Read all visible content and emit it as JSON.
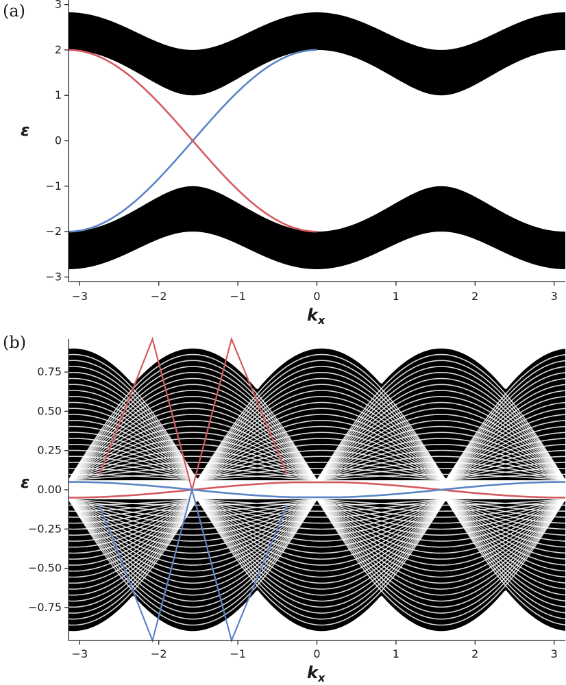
{
  "chart_data": [
    {
      "type": "line",
      "panel_label": "(a)",
      "xlabel": "k",
      "xlabel_sub": "x",
      "ylabel": "ε",
      "xlim": [
        -3.14159,
        3.14159
      ],
      "ylim": [
        -3.1,
        3.1
      ],
      "xticks": [
        -3,
        -2,
        -1,
        0,
        1,
        2,
        3
      ],
      "xtick_labels": [
        "−3",
        "−2",
        "−1",
        "0",
        "1",
        "2",
        "3"
      ],
      "yticks": [
        -3,
        -2,
        -1,
        0,
        1,
        2,
        3
      ],
      "ytick_labels": [
        "−3",
        "−2",
        "−1",
        "0",
        "1",
        "2",
        "3"
      ],
      "grid": false,
      "bands": [
        {
          "color": "#000000",
          "x_sampled": [
            -3.14159,
            -2.356,
            -1.5708,
            -0.785,
            0,
            0.785,
            1.5708,
            2.356,
            3.14159
          ],
          "lower": [
            2.0,
            1.3,
            0.71,
            1.3,
            2.0,
            1.3,
            0.71,
            1.3,
            2.0
          ],
          "upper": [
            2.83,
            2.4,
            2.0,
            2.4,
            2.83,
            2.4,
            2.0,
            2.4,
            2.83
          ]
        },
        {
          "color": "#000000",
          "x_sampled": [
            -3.14159,
            -2.356,
            -1.5708,
            -0.785,
            0,
            0.785,
            1.5708,
            2.356,
            3.14159
          ],
          "lower": [
            -2.83,
            -2.4,
            -2.0,
            -2.4,
            -2.83,
            -2.4,
            -2.0,
            -2.4,
            -2.83
          ],
          "upper": [
            -2.0,
            -1.3,
            -0.71,
            -1.3,
            -2.0,
            -1.3,
            -0.71,
            -1.3,
            -2.0
          ]
        }
      ],
      "series": [
        {
          "color": "#5b84c6",
          "x": [
            -3.14159,
            -2.5,
            -2.0,
            -1.5708,
            -1.0,
            -0.5,
            0
          ],
          "y": [
            2.0,
            1.6,
            0.83,
            0.0,
            -1.08,
            -1.75,
            -2.0
          ]
        },
        {
          "color": "#d45a5f",
          "x": [
            -3.14159,
            -2.5,
            -2.0,
            -1.5708,
            -1.0,
            -0.5,
            0
          ],
          "y": [
            -2.0,
            -1.6,
            -0.83,
            0.0,
            1.08,
            1.75,
            2.0
          ]
        }
      ]
    },
    {
      "type": "line",
      "panel_label": "(b)",
      "xlabel": "k",
      "xlabel_sub": "x",
      "ylabel": "ε",
      "xlim": [
        -3.14159,
        3.14159
      ],
      "ylim": [
        -0.96,
        0.96
      ],
      "xticks": [
        -3,
        -2,
        -1,
        0,
        1,
        2,
        3
      ],
      "xtick_labels": [
        "−3",
        "−2",
        "−1",
        "0",
        "1",
        "2",
        "3"
      ],
      "yticks": [
        0.75,
        0.5,
        0.25,
        0.0,
        -0.25,
        -0.5,
        -0.75
      ],
      "ytick_labels": [
        "0.75",
        "0.50",
        "0.25",
        "0.00",
        "−0.25",
        "−0.50",
        "−0.75"
      ],
      "grid": false,
      "bands": [
        {
          "color": "#000000",
          "description_values": {
            "max_abs_energy": 0.9,
            "gap_half_width": 0.06
          }
        }
      ],
      "series": [
        {
          "color": "#d45a5f",
          "x": [
            -2.75,
            -2.08,
            -1.58,
            -1.08,
            -0.38
          ],
          "y": [
            0.1,
            0.96,
            0.0,
            0.96,
            0.1
          ]
        },
        {
          "color": "#5b84c6",
          "x": [
            -2.75,
            -2.08,
            -1.58,
            -1.08,
            -0.38
          ],
          "y": [
            -0.1,
            -0.96,
            0.0,
            -0.96,
            -0.1
          ]
        }
      ]
    }
  ]
}
